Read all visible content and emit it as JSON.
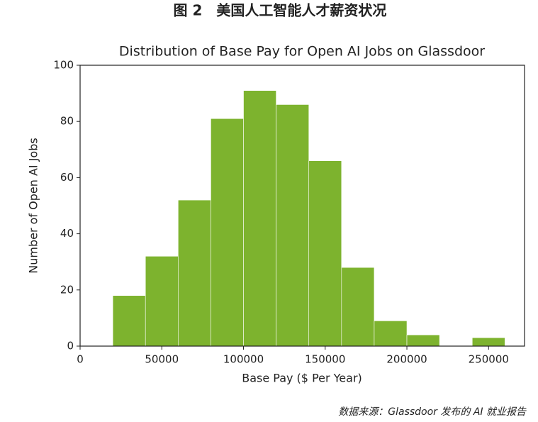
{
  "figure_title": "图 2　美国人工智能人才薪资状况",
  "source": "数据来源：Glassdoor 发布的 AI 就业报告",
  "chart_data": {
    "type": "histogram",
    "title": "Distribution of Base Pay for Open AI Jobs on Glassdoor",
    "x_label": "Base Pay ($ Per Year)",
    "y_label": "Number of Open AI Jobs",
    "bins": [
      20000,
      40000,
      60000,
      80000,
      100000,
      120000,
      140000,
      160000,
      180000,
      200000,
      220000,
      240000,
      260000
    ],
    "values": [
      18,
      32,
      52,
      81,
      91,
      86,
      66,
      28,
      9,
      4,
      0,
      3
    ],
    "color": "#7db32e",
    "xlim": [
      0,
      272000
    ],
    "ylim": [
      0,
      100
    ],
    "xticks": [
      0,
      50000,
      100000,
      150000,
      200000,
      250000
    ],
    "yticks": [
      0,
      20,
      40,
      60,
      80,
      100
    ]
  }
}
